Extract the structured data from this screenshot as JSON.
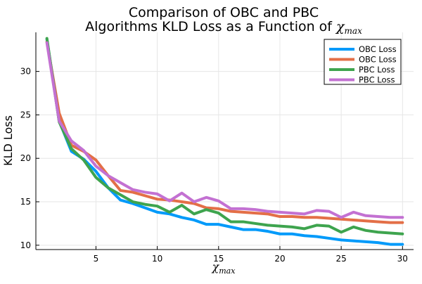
{
  "chart_data": {
    "type": "line",
    "title": "Comparison of OBC and PBC",
    "title_line2_text": "Algorithms KLD Loss as a Function of ",
    "title_math_base": "χ",
    "title_math_sub": "max",
    "xlabel_base": "χ",
    "xlabel_sub": "max",
    "ylabel": "KLD Loss",
    "xlim": [
      0.1,
      30.9
    ],
    "ylim": [
      9.5,
      34.5
    ],
    "xticks": [
      5,
      10,
      15,
      20,
      25,
      30
    ],
    "yticks": [
      10,
      15,
      20,
      25,
      30
    ],
    "grid": true,
    "legend_position": "top-right",
    "x": [
      1,
      2,
      3,
      4,
      5,
      6,
      7,
      8,
      9,
      10,
      11,
      12,
      13,
      14,
      15,
      16,
      17,
      18,
      19,
      20,
      21,
      22,
      23,
      24,
      25,
      26,
      27,
      28,
      29,
      30
    ],
    "series": [
      {
        "name": "OBC Loss",
        "color": "#009AFA",
        "values": [
          33.7,
          24.3,
          20.8,
          19.9,
          18.5,
          16.6,
          15.2,
          14.8,
          14.3,
          13.8,
          13.6,
          13.2,
          12.9,
          12.4,
          12.4,
          12.1,
          11.8,
          11.8,
          11.6,
          11.3,
          11.3,
          11.1,
          11.0,
          10.8,
          10.6,
          10.5,
          10.4,
          10.3,
          10.1,
          10.1
        ]
      },
      {
        "name": "OBC Loss",
        "color": "#E36F47",
        "values": [
          33.4,
          25.2,
          21.5,
          20.8,
          19.8,
          18.0,
          16.3,
          16.1,
          15.7,
          15.3,
          15.2,
          15.0,
          14.8,
          14.3,
          14.2,
          13.9,
          13.8,
          13.7,
          13.6,
          13.3,
          13.3,
          13.2,
          13.2,
          13.1,
          13.0,
          12.9,
          12.8,
          12.7,
          12.6,
          12.6
        ]
      },
      {
        "name": "PBC Loss",
        "color": "#3EA44E",
        "values": [
          33.8,
          24.2,
          21.1,
          19.8,
          17.8,
          16.6,
          15.8,
          15.0,
          14.7,
          14.5,
          13.8,
          14.6,
          13.6,
          14.1,
          13.7,
          12.7,
          12.7,
          12.5,
          12.3,
          12.2,
          12.1,
          11.9,
          12.3,
          12.2,
          11.5,
          12.1,
          11.7,
          11.5,
          11.4,
          11.3
        ]
      },
      {
        "name": "PBC Loss",
        "color": "#C371D2",
        "values": [
          33.3,
          24.3,
          22.0,
          20.9,
          19.1,
          18.0,
          17.2,
          16.4,
          16.1,
          15.9,
          15.1,
          16.0,
          15.0,
          15.5,
          15.1,
          14.2,
          14.2,
          14.1,
          13.9,
          13.8,
          13.7,
          13.6,
          14.0,
          13.9,
          13.2,
          13.8,
          13.4,
          13.3,
          13.2,
          13.2
        ]
      }
    ]
  }
}
